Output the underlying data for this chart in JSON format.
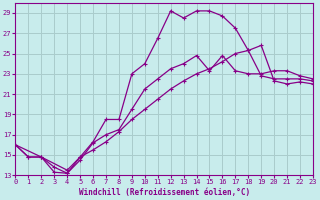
{
  "xlabel": "Windchill (Refroidissement éolien,°C)",
  "bg_color": "#c8ecec",
  "grid_color": "#aacccc",
  "line_color": "#880088",
  "xlim": [
    0,
    23
  ],
  "ylim": [
    13,
    30
  ],
  "xticks": [
    0,
    1,
    2,
    3,
    4,
    5,
    6,
    7,
    8,
    9,
    10,
    11,
    12,
    13,
    14,
    15,
    16,
    17,
    18,
    19,
    20,
    21,
    22,
    23
  ],
  "yticks": [
    13,
    15,
    17,
    19,
    21,
    23,
    25,
    27,
    29
  ],
  "curve1_x": [
    0,
    1,
    2,
    3,
    4,
    5,
    6,
    7,
    8,
    9,
    10,
    11,
    12,
    13,
    14,
    15,
    16,
    17,
    18,
    19,
    20,
    21,
    22,
    23
  ],
  "curve1_y": [
    16,
    14.8,
    14.8,
    13.3,
    13.2,
    14.8,
    16.3,
    18.5,
    18.5,
    23.0,
    24.0,
    26.5,
    29.2,
    28.5,
    29.2,
    29.2,
    28.7,
    27.5,
    25.3,
    22.8,
    22.5,
    22.5,
    22.5,
    22.3
  ],
  "curve2_x": [
    0,
    2,
    3,
    4,
    5,
    6,
    7,
    8,
    9,
    10,
    11,
    12,
    13,
    14,
    15,
    16,
    17,
    18,
    19,
    20,
    21,
    22,
    23
  ],
  "curve2_y": [
    16,
    14.8,
    13.8,
    13.2,
    14.5,
    16.2,
    17.0,
    17.5,
    19.5,
    21.5,
    22.5,
    23.5,
    24.0,
    24.8,
    23.3,
    24.8,
    23.3,
    23.0,
    23.0,
    23.3,
    23.3,
    22.8,
    22.5
  ],
  "curve3_x": [
    0,
    1,
    2,
    4,
    5,
    6,
    7,
    8,
    9,
    10,
    11,
    12,
    13,
    14,
    15,
    16,
    17,
    18,
    19,
    20,
    21,
    22,
    23
  ],
  "curve3_y": [
    16,
    14.8,
    14.8,
    13.5,
    14.8,
    15.5,
    16.3,
    17.3,
    18.5,
    19.5,
    20.5,
    21.5,
    22.3,
    23.0,
    23.5,
    24.2,
    25.0,
    25.3,
    25.8,
    22.3,
    22.0,
    22.2,
    22.0
  ]
}
